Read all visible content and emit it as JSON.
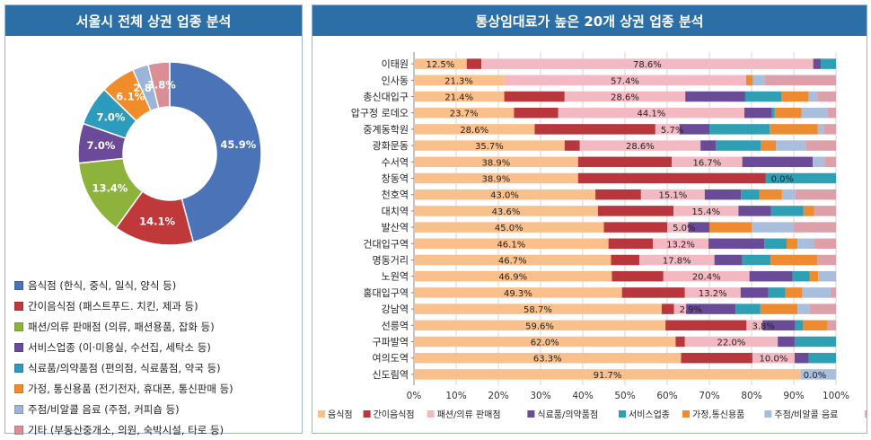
{
  "left": {
    "title": "서울시 전체 상권 업종 분석"
  },
  "right": {
    "title": "통상임대료가 높은 20개 상권 업종 분석"
  },
  "colors": {
    "header": "#2c6fa6",
    "donut": [
      "#4a73b8",
      "#c0393a",
      "#8db33c",
      "#6b4a9a",
      "#2d9bbb",
      "#f08c2a",
      "#9bb4d8",
      "#d98f95"
    ],
    "bars": [
      "#f9c08c",
      "#b8363c",
      "#f3b9c3",
      "#6a4b97",
      "#2f9fb3",
      "#ee8a30",
      "#a9bddc",
      "#dca1a8"
    ]
  },
  "chart_data": [
    {
      "type": "pie",
      "subtype": "donut",
      "categories": [
        "음식점 (한식, 중식, 일식, 양식 등)",
        "간이음식점 (패스트푸드. 치킨, 제과 등)",
        "패션/의류 판매점 (의류, 패션용품, 잡화  등)",
        "서비스업종 (이·미용실, 수선집, 세탁소  등)",
        "식료품/의약품점 (편의점, 식료품점, 약국 등)",
        "가정, 통신용품 (전기전자, 휴대폰, 통신판매 등)",
        "주점/비알콜 음료 (주점, 커피숍 등)",
        "기타 (부동산중개소, 의원, 숙박시설, 타로 등)"
      ],
      "values": [
        45.9,
        14.1,
        13.4,
        7.0,
        7.0,
        6.1,
        2.8,
        3.8
      ],
      "labels": [
        "45.9%",
        "14.1%",
        "13.4%",
        "7.0%",
        "7.0%",
        "6.1%",
        "2.8%",
        "3.8%"
      ],
      "legend_position": "bottom"
    },
    {
      "type": "bar",
      "orientation": "horizontal",
      "stacked": "percent",
      "categories": [
        "이태원",
        "인사동",
        "총신대입구",
        "압구정 로데오",
        "중계동학원",
        "광화문동",
        "수서역",
        "창동역",
        "천호역",
        "대치역",
        "발산역",
        "건대입구역",
        "명동거리",
        "노원역",
        "홍대입구역",
        "강남역",
        "선릉역",
        "구파발역",
        "여의도역",
        "신도림역"
      ],
      "series": [
        {
          "name": "음식점",
          "values": [
            12.5,
            21.3,
            21.4,
            23.7,
            28.6,
            35.7,
            38.9,
            38.9,
            43.0,
            43.6,
            45.0,
            46.1,
            46.7,
            46.9,
            49.3,
            58.7,
            59.6,
            62.0,
            63.3,
            91.7
          ]
        },
        {
          "name": "간이음식점",
          "values": [
            3.5,
            0,
            14.3,
            10.5,
            28.6,
            3.6,
            22.2,
            44.4,
            10.8,
            17.9,
            15.0,
            10.5,
            6.7,
            12.2,
            14.9,
            2.9,
            19.2,
            2.2,
            16.9,
            0
          ]
        },
        {
          "name": "패션/의류 판매점",
          "values": [
            78.6,
            57.4,
            28.6,
            44.1,
            5.7,
            28.6,
            16.7,
            0.0,
            15.1,
            15.4,
            5.0,
            13.2,
            17.8,
            20.4,
            13.2,
            2.9,
            3.8,
            22.0,
            10.0,
            0.0
          ]
        },
        {
          "name": "식료품/의약품점",
          "values": [
            1.8,
            0,
            14.2,
            6.5,
            7.1,
            3.6,
            16.7,
            0,
            8.6,
            7.7,
            5.0,
            13.2,
            6.6,
            10.2,
            6.6,
            11.7,
            7.7,
            4.0,
            3.3,
            0
          ]
        },
        {
          "name": "서비스업종",
          "values": [
            3.6,
            0,
            8.6,
            0.7,
            14.3,
            10.7,
            0,
            16.7,
            4.3,
            7.7,
            0,
            5.3,
            6.7,
            4.1,
            4.0,
            5.9,
            1.9,
            9.8,
            6.5,
            0
          ]
        },
        {
          "name": "가정,통신용품",
          "values": [
            0,
            1.6,
            6.4,
            6.3,
            11.4,
            3.6,
            0,
            0,
            5.4,
            2.5,
            10.0,
            2.6,
            11.1,
            2.0,
            4.0,
            8.8,
            5.8,
            0,
            0,
            0
          ]
        },
        {
          "name": "주점/비알콜 음료",
          "values": [
            0,
            2.9,
            2.1,
            6.2,
            1.4,
            7.1,
            2.8,
            0,
            3.2,
            0,
            10.0,
            3.9,
            0,
            4.1,
            6.7,
            2.9,
            0,
            0,
            0,
            8.3
          ]
        },
        {
          "name": "기타",
          "values": [
            0,
            16.8,
            4.4,
            2.0,
            2.9,
            7.1,
            2.7,
            0,
            9.6,
            5.2,
            10.0,
            5.2,
            4.4,
            0.1,
            1.3,
            6.2,
            2.0,
            0,
            0,
            0
          ]
        }
      ],
      "bar_labels": [
        [
          "12.5%",
          "78.6%"
        ],
        [
          "21.3%",
          "57.4%"
        ],
        [
          "21.4%",
          "28.6%"
        ],
        [
          "23.7%",
          "44.1%"
        ],
        [
          "28.6%",
          "5.7%"
        ],
        [
          "35.7%",
          "28.6%"
        ],
        [
          "38.9%",
          "16.7%"
        ],
        [
          "38.9%",
          "0.0%"
        ],
        [
          "43.0%",
          "15.1%"
        ],
        [
          "43.6%",
          "15.4%"
        ],
        [
          "45.0%",
          "5.0%"
        ],
        [
          "46.1%",
          "13.2%"
        ],
        [
          "46.7%",
          "17.8%"
        ],
        [
          "46.9%",
          "20.4%"
        ],
        [
          "49.3%",
          "13.2%"
        ],
        [
          "58.7%",
          "2.9%"
        ],
        [
          "59.6%",
          "3.8%"
        ],
        [
          "62.0%",
          "22.0%"
        ],
        [
          "63.3%",
          "10.0%"
        ],
        [
          "91.7%",
          "0.0%"
        ]
      ],
      "xlim": [
        0,
        100
      ],
      "xticks": [
        "0%",
        "10%",
        "20%",
        "30%",
        "40%",
        "50%",
        "60%",
        "70%",
        "80%",
        "90%",
        "100%"
      ],
      "legend_position": "bottom"
    }
  ]
}
